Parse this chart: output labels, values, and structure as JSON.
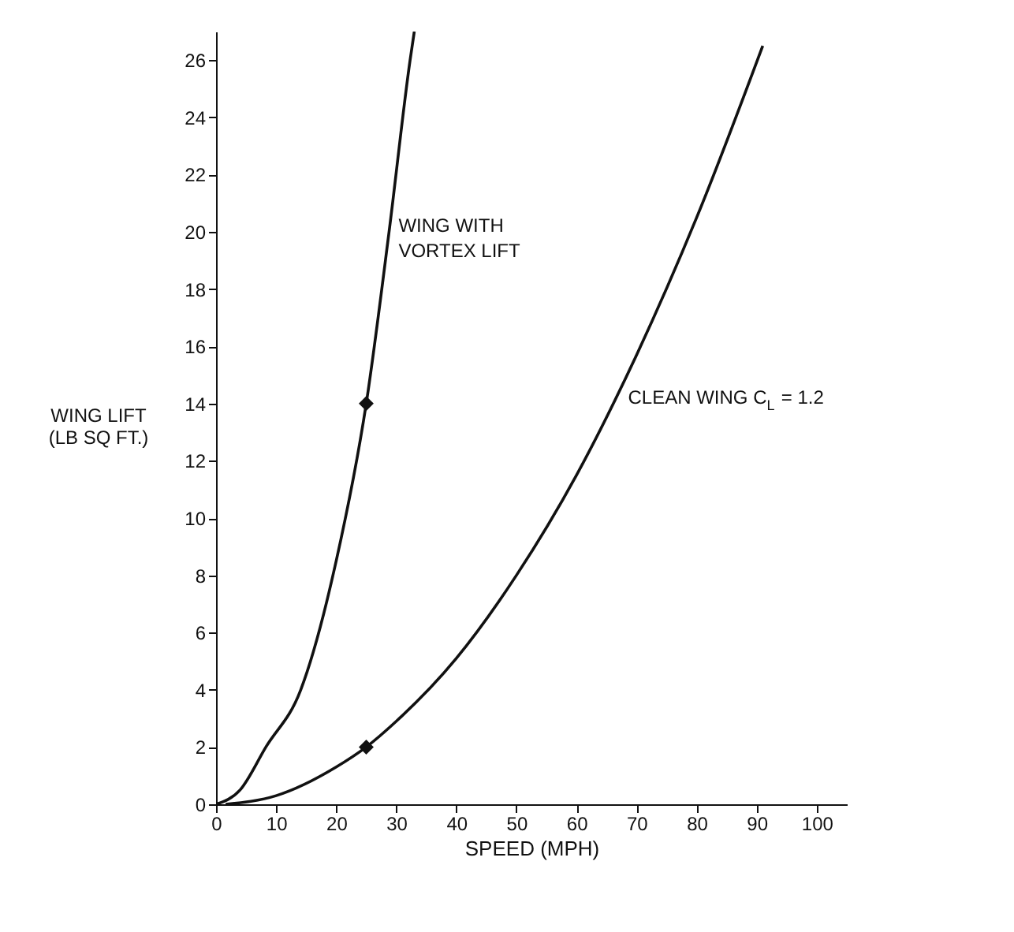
{
  "chart_data": {
    "type": "line",
    "xlabel": "SPEED (MPH)",
    "ylabel": "WING LIFT\n(LB SQ FT.)",
    "series": [
      {
        "color": "#111111",
        "x": [
          0,
          4,
          8.3,
          14.1,
          20,
          25,
          28.8,
          32.3,
          33
        ],
        "values": [
          0,
          0.5,
          2,
          4,
          8.5,
          14,
          20,
          26,
          27
        ]
      },
      {
        "color": "#111111",
        "x": [
          1.6,
          10,
          20,
          25,
          30,
          40,
          50,
          60,
          70,
          80,
          91
        ],
        "values": [
          0,
          0.3,
          1.3,
          2,
          2.9,
          5.1,
          8,
          11.5,
          15.7,
          20.5,
          26.5
        ]
      },
      {
        "type": "scatter",
        "marker": "diamond",
        "color": "#111111",
        "x": [
          25,
          25
        ],
        "values": [
          14,
          2
        ]
      }
    ],
    "annotations": [
      {
        "text": "WING WITH\nVORTEX LIFT",
        "x": 28.8,
        "y": 20
      },
      {
        "text": "CLEAN WING C$_{L}$ = 1.2",
        "x": 67,
        "y": 14
      }
    ],
    "xlim": [
      0,
      105
    ],
    "xticks": [
      0,
      10,
      20,
      30,
      40,
      50,
      60,
      70,
      80,
      90,
      100
    ],
    "ylim": [
      0,
      27
    ],
    "yticks": [
      0,
      2,
      4,
      6,
      8,
      10,
      12,
      14,
      16,
      18,
      20,
      22,
      24,
      26
    ],
    "grid": false,
    "line_style": "solid"
  }
}
